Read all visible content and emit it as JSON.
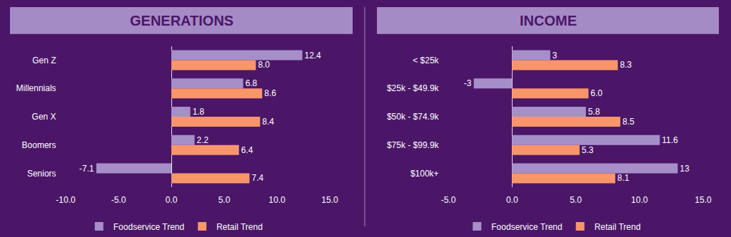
{
  "chart_data": [
    {
      "type": "bar",
      "title": "GENERATIONS",
      "orientation": "horizontal",
      "categories": [
        "Gen Z",
        "Millennials",
        "Gen X",
        "Boomers",
        "Seniors"
      ],
      "series": [
        {
          "name": "Foodservice Trend",
          "color": "#a68fc9",
          "values": [
            12.4,
            6.8,
            1.8,
            2.2,
            -7.1
          ],
          "value_labels": [
            "12.4",
            "6.8",
            "1.8",
            "2.2",
            "-7.1"
          ]
        },
        {
          "name": "Retail Trend",
          "color": "#f9956a",
          "values": [
            8.0,
            8.6,
            8.4,
            6.4,
            7.4
          ],
          "value_labels": [
            "8.0",
            "8.6",
            "8.4",
            "6.4",
            "7.4"
          ]
        }
      ],
      "xlim": [
        -10,
        15
      ],
      "xticks": [
        {
          "value": -10,
          "label": "-10.0"
        },
        {
          "value": -5,
          "label": "-5.0"
        },
        {
          "value": 0,
          "label": "0.0"
        },
        {
          "value": 5,
          "label": "5.0"
        },
        {
          "value": 10,
          "label": "10.0"
        },
        {
          "value": 15,
          "label": "15.0"
        }
      ],
      "grid": false,
      "data_labels": true,
      "legend": "bottom"
    },
    {
      "type": "bar",
      "title": "INCOME",
      "orientation": "horizontal",
      "categories": [
        "< $25k",
        "$25k - $49.9k",
        "$50k - $74.9k",
        "$75k - $99.9k",
        "$100k+"
      ],
      "series": [
        {
          "name": "Foodservice Trend",
          "color": "#a68fc9",
          "values": [
            3,
            -3,
            5.8,
            11.6,
            13
          ],
          "value_labels": [
            "3",
            "-3",
            "5.8",
            "11.6",
            "13"
          ]
        },
        {
          "name": "Retail Trend",
          "color": "#f9956a",
          "values": [
            8.3,
            6.0,
            8.5,
            5.3,
            8.1
          ],
          "value_labels": [
            "8.3",
            "6.0",
            "8.5",
            "5.3",
            "8.1"
          ]
        }
      ],
      "xlim": [
        -5,
        15
      ],
      "xticks": [
        {
          "value": -5,
          "label": "-5.0"
        },
        {
          "value": 0,
          "label": "0.0"
        },
        {
          "value": 5,
          "label": "5.0"
        },
        {
          "value": 10,
          "label": "10.0"
        },
        {
          "value": 15,
          "label": "15.0"
        }
      ],
      "grid": false,
      "data_labels": true,
      "legend": "bottom"
    }
  ]
}
